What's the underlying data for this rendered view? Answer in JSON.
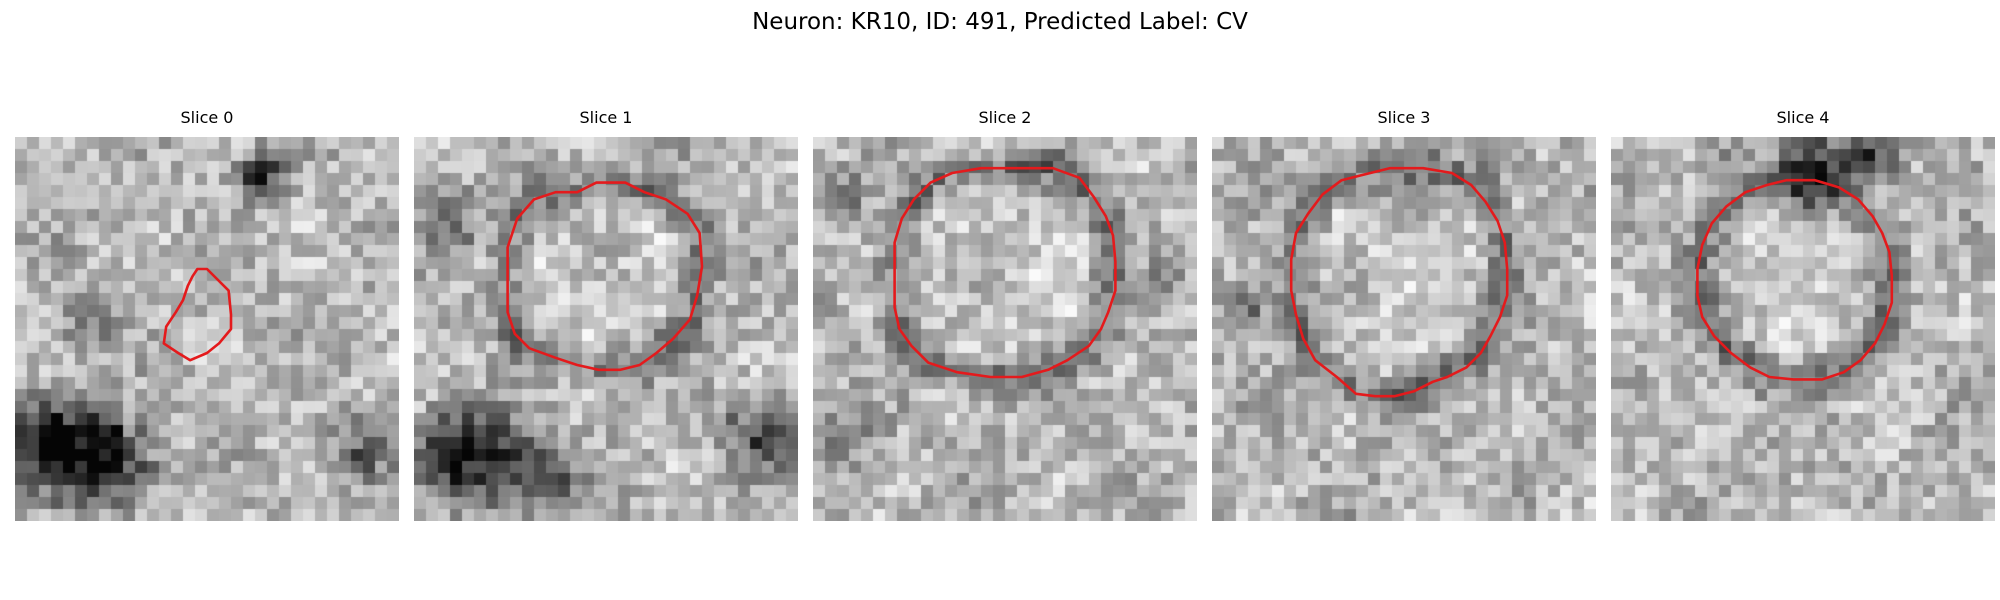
{
  "figure": {
    "title": "Neuron: KR10, ID: 491, Predicted Label: CV",
    "contour_color": "#e41a1c",
    "colormap": "gray"
  },
  "panels": [
    {
      "title": "Slice 0",
      "contour": [
        [
          7.6,
          5.5
        ],
        [
          8.0,
          5.5
        ],
        [
          8.5,
          6.0
        ],
        [
          8.9,
          6.4
        ],
        [
          9.0,
          7.4
        ],
        [
          9.0,
          8.0
        ],
        [
          8.5,
          8.6
        ],
        [
          8.0,
          9.0
        ],
        [
          7.3,
          9.3
        ],
        [
          6.8,
          9.0
        ],
        [
          6.2,
          8.6
        ],
        [
          6.3,
          7.9
        ],
        [
          6.7,
          7.3
        ],
        [
          7.0,
          6.8
        ],
        [
          7.2,
          6.2
        ],
        [
          7.4,
          5.8
        ]
      ]
    },
    {
      "title": "Slice 1",
      "contour": [
        [
          6.8,
          2.3
        ],
        [
          7.6,
          1.9
        ],
        [
          8.8,
          1.9
        ],
        [
          9.6,
          2.3
        ],
        [
          10.5,
          2.6
        ],
        [
          11.4,
          3.2
        ],
        [
          11.9,
          4.0
        ],
        [
          12.0,
          5.4
        ],
        [
          11.8,
          6.6
        ],
        [
          11.5,
          7.6
        ],
        [
          10.8,
          8.4
        ],
        [
          10.1,
          9.0
        ],
        [
          9.4,
          9.5
        ],
        [
          8.6,
          9.7
        ],
        [
          7.7,
          9.7
        ],
        [
          6.8,
          9.5
        ],
        [
          5.9,
          9.2
        ],
        [
          4.8,
          8.8
        ],
        [
          4.2,
          8.2
        ],
        [
          3.9,
          7.3
        ],
        [
          3.9,
          5.8
        ],
        [
          3.9,
          4.6
        ],
        [
          4.3,
          3.4
        ],
        [
          5.0,
          2.6
        ],
        [
          5.9,
          2.3
        ]
      ]
    },
    {
      "title": "Slice 2",
      "contour": [
        [
          7.0,
          1.3
        ],
        [
          8.6,
          1.3
        ],
        [
          10.0,
          1.3
        ],
        [
          11.1,
          1.7
        ],
        [
          11.7,
          2.5
        ],
        [
          12.2,
          3.3
        ],
        [
          12.5,
          4.1
        ],
        [
          12.6,
          5.2
        ],
        [
          12.6,
          6.4
        ],
        [
          12.3,
          7.3
        ],
        [
          12.0,
          8.0
        ],
        [
          11.5,
          8.7
        ],
        [
          10.6,
          9.3
        ],
        [
          9.8,
          9.7
        ],
        [
          8.7,
          10.0
        ],
        [
          7.4,
          10.0
        ],
        [
          6.0,
          9.8
        ],
        [
          4.8,
          9.4
        ],
        [
          4.1,
          8.7
        ],
        [
          3.6,
          8.0
        ],
        [
          3.4,
          7.1
        ],
        [
          3.4,
          5.8
        ],
        [
          3.4,
          4.4
        ],
        [
          3.7,
          3.4
        ],
        [
          4.2,
          2.6
        ],
        [
          4.9,
          1.9
        ],
        [
          5.8,
          1.5
        ]
      ]
    },
    {
      "title": "Slice 3",
      "contour": [
        [
          6.2,
          1.6
        ],
        [
          7.4,
          1.3
        ],
        [
          8.8,
          1.3
        ],
        [
          10.0,
          1.5
        ],
        [
          10.8,
          2.0
        ],
        [
          11.4,
          2.7
        ],
        [
          11.9,
          3.5
        ],
        [
          12.2,
          4.4
        ],
        [
          12.3,
          5.5
        ],
        [
          12.3,
          6.6
        ],
        [
          12.0,
          7.5
        ],
        [
          11.6,
          8.3
        ],
        [
          11.2,
          9.0
        ],
        [
          10.6,
          9.6
        ],
        [
          9.8,
          10.0
        ],
        [
          9.2,
          10.2
        ],
        [
          8.4,
          10.6
        ],
        [
          7.6,
          10.8
        ],
        [
          6.8,
          10.8
        ],
        [
          6.0,
          10.7
        ],
        [
          5.2,
          10.0
        ],
        [
          4.3,
          9.3
        ],
        [
          3.8,
          8.4
        ],
        [
          3.5,
          7.4
        ],
        [
          3.3,
          6.4
        ],
        [
          3.3,
          5.1
        ],
        [
          3.5,
          4.0
        ],
        [
          4.0,
          3.2
        ],
        [
          4.6,
          2.4
        ],
        [
          5.4,
          1.8
        ]
      ]
    },
    {
      "title": "Slice 4",
      "contour": [
        [
          6.5,
          2.0
        ],
        [
          7.3,
          1.8
        ],
        [
          8.5,
          1.8
        ],
        [
          9.5,
          2.1
        ],
        [
          10.3,
          2.6
        ],
        [
          10.9,
          3.3
        ],
        [
          11.3,
          4.0
        ],
        [
          11.6,
          4.8
        ],
        [
          11.7,
          5.8
        ],
        [
          11.7,
          6.9
        ],
        [
          11.4,
          7.8
        ],
        [
          11.0,
          8.6
        ],
        [
          10.4,
          9.3
        ],
        [
          9.7,
          9.8
        ],
        [
          8.8,
          10.1
        ],
        [
          7.6,
          10.1
        ],
        [
          6.6,
          10.0
        ],
        [
          5.8,
          9.6
        ],
        [
          5.0,
          9.0
        ],
        [
          4.3,
          8.3
        ],
        [
          3.8,
          7.5
        ],
        [
          3.6,
          6.6
        ],
        [
          3.6,
          5.5
        ],
        [
          3.8,
          4.5
        ],
        [
          4.2,
          3.6
        ],
        [
          4.8,
          2.9
        ],
        [
          5.6,
          2.3
        ]
      ]
    }
  ]
}
